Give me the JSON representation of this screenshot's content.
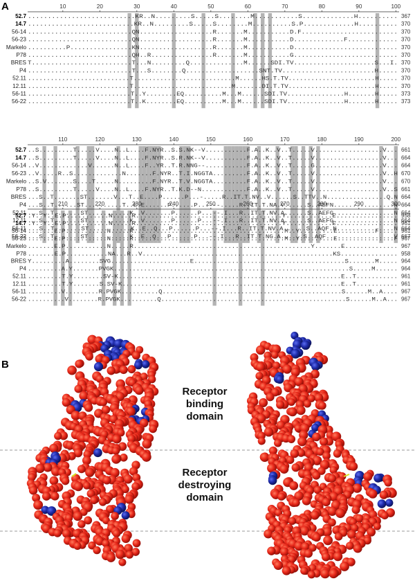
{
  "panel_a": {
    "label": "A",
    "blocks": [
      {
        "ruler": [
          10,
          20,
          30,
          40,
          50,
          60,
          70,
          80,
          90,
          100
        ],
        "start": 1,
        "rows": [
          {
            "name": "52.7",
            "bold": true,
            "seq": "...........................KR..N.........S.....S........M...........S.............H..........",
            "end": 367
          },
          {
            "name": "14.7",
            "bold": true,
            "seq": "...........................KR..N.........S.....S........M..........S.P.............H..........",
            "end": 370
          },
          {
            "name": "56-14",
            "seq": "...........................QN...................R.......M...........D.F.........................",
            "end": 370
          },
          {
            "name": "56-23",
            "seq": "...........................QN...................R.......M...........D.............F.............",
            "end": 370
          },
          {
            "name": "Markelo",
            "seq": "..........P................KN...................R.......M...........D...........................",
            "end": 370
          },
          {
            "name": "P78",
            "seq": "...........................QH..R................R.......M...........G...........................",
            "end": 370
          },
          {
            "name": "BRES",
            "seq": "T..........................T...N.........Q..............M......SDI.TV.....................S...I.",
            "end": 370
          },
          {
            "name": "P4",
            "seq": "...........................T...S........Q...................SNT.TV........................H.....",
            "end": 370
          },
          {
            "name": "52.11",
            "seq": "...........................T...........................M......HS.T.TV.......................H.....",
            "end": 370
          },
          {
            "name": "12.11",
            "seq": "...........................T..........................M.......DI.T.TV.......................H.....",
            "end": 370
          },
          {
            "name": "56-11",
            "seq": "...........................T..Y........EQ..........M...M......SDI.TV...............H.......H.....",
            "end": 373
          },
          {
            "name": "56-22",
            "seq": "...........................T..K........EQ..........M...M......SDI.TV...............H.......H.....",
            "end": 373
          }
        ]
      },
      {
        "ruler": [
          110,
          120,
          130,
          140,
          150,
          160,
          170,
          180,
          190,
          200
        ],
        "start": 101,
        "rows": [
          {
            "name": "52.7",
            "bold": true,
            "seq": "..S.........T.....V....N..L....F.NYR..S.S.NK--V...........F.A..K..V..T.....V..................V...",
            "end": 661
          },
          {
            "name": "14.7",
            "bold": true,
            "seq": "..S.........T.....V....N..L....F.NYR..S.R.NK--V...........F.A..K..V..T.....V..................V...",
            "end": 664
          },
          {
            "name": "56-14",
            "seq": "..V.............V......N..L....F..YR..T.R.NNG--...........F.A..K..V..T.....G..................V...",
            "end": 664
          },
          {
            "name": "56-23",
            "seq": "..V.....R..S.............N.......F.NYR..T.I.NGGTA.........F.A..K..V..T.....V..................V..H",
            "end": 670
          },
          {
            "name": "Markelo",
            "seq": "..S.V.......S....T.....N.........F.NYR..T.V.NGGTA.........F.A..K..V..T.....V..................V...",
            "end": 670
          },
          {
            "name": "P78",
            "seq": "..S.........T.....V....N..L....F.NYR..T.K.D--N............F.A..K..V..T.....V..................V..S",
            "end": 661
          },
          {
            "name": "BRES",
            "seq": "...S..T.......ST.......V...T..E....P......P...-.....R..IT.T.NV..V......S..TTV..N................Q.N",
            "end": 664
          },
          {
            "name": "P4",
            "seq": "...S..T......ST..........T..E.E......P......P...---.....R..IT.T.NA.V......S..AEFN................N",
            "end": 664
          },
          {
            "name": "52.11",
            "seq": "...S..T.......ST...........K..V.......P......P...--.I...R..IT.T.NV.A......S..AEFG................N",
            "end": 664
          },
          {
            "name": "12.11",
            "seq": "...S..T.......ST...........K..V.......P......P...--.I...R..IT.T.NV.A......S..AEFG................N",
            "end": 664
          },
          {
            "name": "56-11",
            "seq": "...S..T.......ST...........K..E..Q...P......P...--.I...R..IT.T.NV.A......S..AQF.N...............N",
            "end": 664
          },
          {
            "name": "56-22",
            "seq": "...S..T.......ST...........K..E..Q...P......P...--.I...R..IT.T.NG.A......S..AQF..................V",
            "end": 667
          }
        ]
      },
      {
        "ruler": [
          210,
          220,
          230,
          240,
          250,
          260,
          270,
          280,
          290,
          300
        ],
        "start": 201,
        "rows": [
          {
            "name": "52.7",
            "bold": true,
            "seq": ".Y..Y..E.P...........N.....R......................................Y............E................",
            "end": 958
          },
          {
            "name": "14.7",
            "bold": true,
            "seq": ".Y..Y..E.P...........N.....R......................................Y............E................",
            "end": 961
          },
          {
            "name": "56-14",
            "seq": ".......E.P...........N.....R........................................M..Y.........E..........F.....",
            "end": 961
          },
          {
            "name": "56-23",
            "seq": ".......E.P...........N.....R........................................M..Y.........E...............F",
            "end": 967
          },
          {
            "name": "Markelo",
            "seq": ".......E.P...........N.....R...............................................Y.......E..............",
            "end": 967
          },
          {
            "name": "P78",
            "seq": ".......E.P...........NA...R..V..................................................KS...............",
            "end": 958
          },
          {
            "name": "BRES",
            "seq": "Y.........A........SVG.....................E........................................S.......M.....",
            "end": 964
          },
          {
            "name": "P4",
            "seq": ".........A.Y.......PVGK...............................................................S.....M......",
            "end": 964
          },
          {
            "name": "52.11",
            "seq": ".........T.Y........SV-K...........................................................E..T...........",
            "end": 961
          },
          {
            "name": "12.11",
            "seq": ".........T.Y.......S.SV-K..........................................................E..T...........",
            "end": 961
          },
          {
            "name": "56-11",
            "seq": ".........V.........R.PVGK..........Q................................................S......M..A....",
            "end": 967
          },
          {
            "name": "56-22",
            "seq": "..........V........R.PVGK..........Q..................................................S......M..A...",
            "end": 967
          }
        ]
      }
    ]
  },
  "panel_b": {
    "label": "B",
    "domains": [
      [
        "Receptor",
        "binding",
        "domain"
      ],
      [
        "Receptor",
        "destroying",
        "domain"
      ]
    ]
  }
}
